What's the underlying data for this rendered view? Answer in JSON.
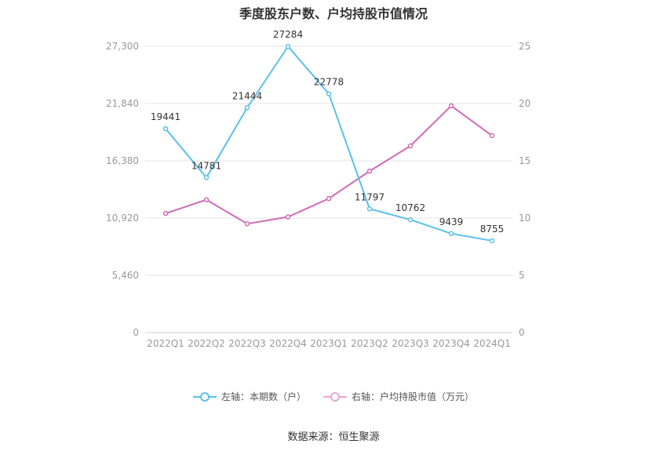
{
  "title": "季度股东户数、户均持股市值情况",
  "source_text": "数据来源：恒生聚源",
  "colors": {
    "left_series": "#5bc0eb",
    "right_series": "#d06bb5",
    "grid": "#e6e6e6",
    "axis_text": "#999999"
  },
  "chart_data": {
    "type": "line",
    "title": "季度股东户数、户均持股市值情况",
    "categories": [
      "2022Q1",
      "2022Q2",
      "2022Q3",
      "2022Q4",
      "2023Q1",
      "2023Q2",
      "2023Q3",
      "2023Q4",
      "2024Q1"
    ],
    "left_axis": {
      "ticks": [
        "0",
        "5,460",
        "10,920",
        "16,380",
        "21,840",
        "27,300"
      ],
      "ylim": [
        0,
        27300
      ]
    },
    "right_axis": {
      "ticks": [
        "0",
        "5",
        "10",
        "15",
        "20",
        "25"
      ],
      "ylim": [
        0,
        25
      ]
    },
    "series": [
      {
        "name": "左轴：本期数（户）",
        "axis": "left",
        "values": [
          19441,
          14781,
          21444,
          27284,
          22778,
          11797,
          10762,
          9439,
          8755
        ],
        "labels": [
          "19441",
          "14781",
          "21444",
          "27284",
          "22778",
          "11797",
          "10762",
          "9439",
          "8755"
        ]
      },
      {
        "name": "右轴：户均持股市值（万元）",
        "axis": "right",
        "values": [
          10.4,
          11.6,
          9.5,
          10.1,
          11.7,
          14.1,
          16.3,
          19.8,
          17.2
        ]
      }
    ],
    "grid": true,
    "legend_position": "bottom-center"
  }
}
